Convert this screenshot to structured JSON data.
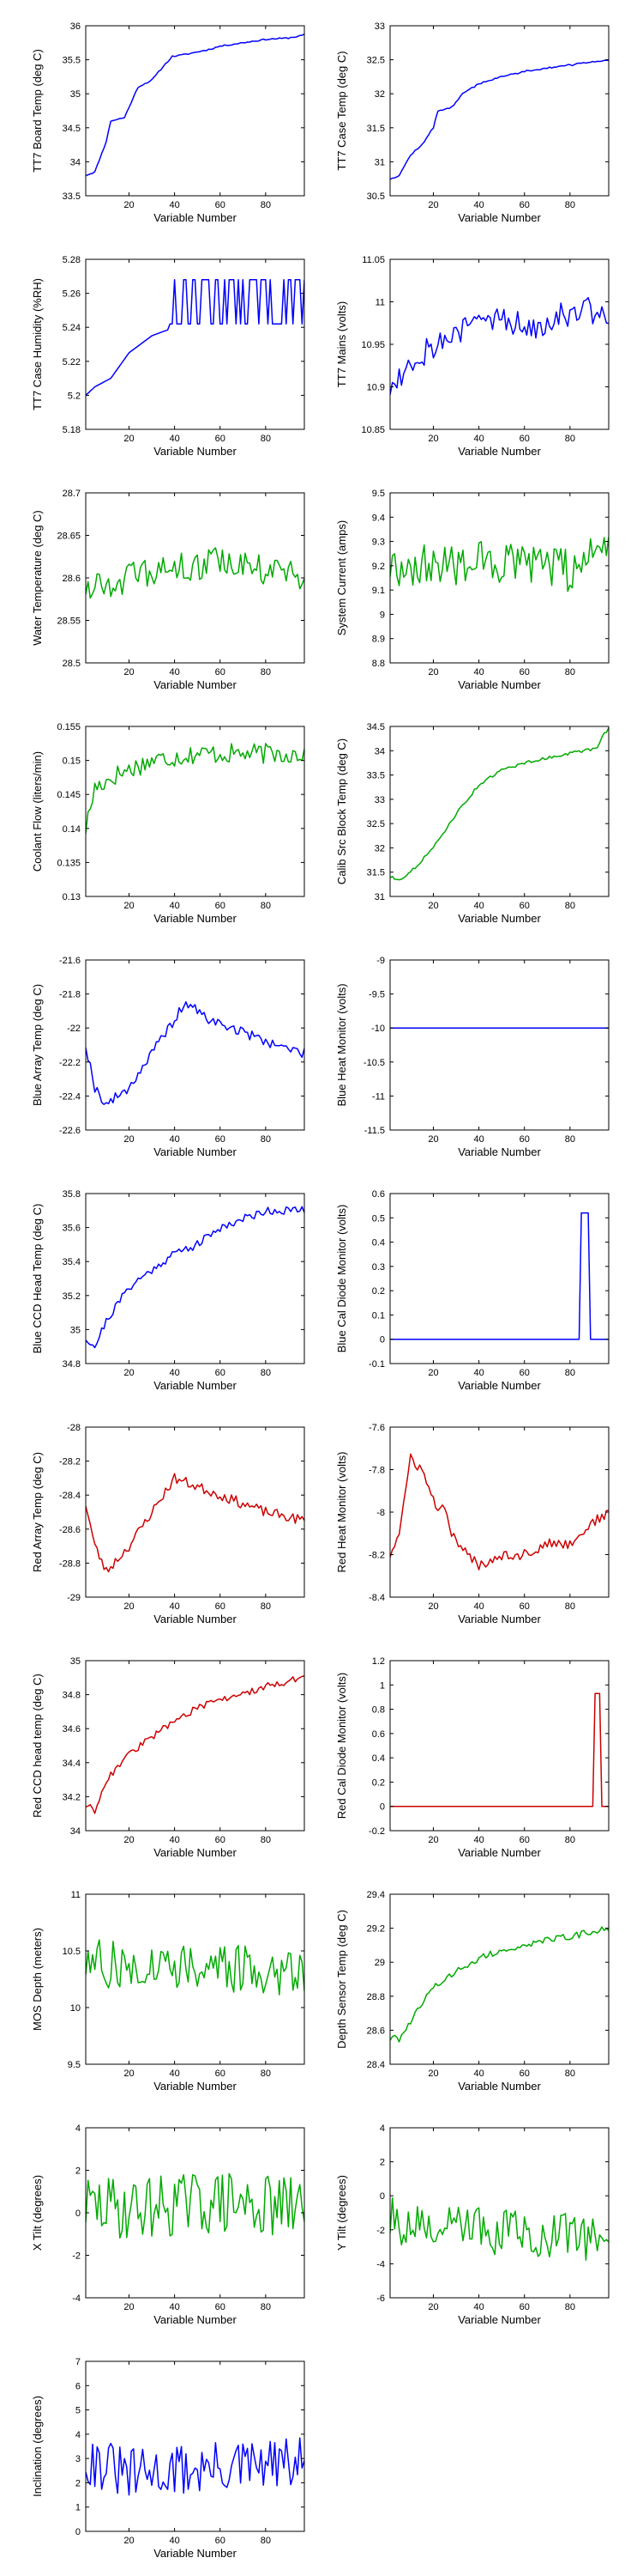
{
  "figure": {
    "xlabel": "Variable Number",
    "xlim": [
      1,
      97
    ],
    "xticks": [
      20,
      40,
      60,
      80
    ]
  },
  "chart_data": [
    {
      "type": "line",
      "color": "#0000ff",
      "xlabel": "Variable Number",
      "ylabel": "TT7 Board Temp (deg C)",
      "ylim": [
        33.5,
        36
      ],
      "yticks": [
        33.5,
        34,
        34.5,
        35,
        35.5,
        36
      ],
      "keyframes": [
        [
          1,
          33.8
        ],
        [
          5,
          33.85
        ],
        [
          10,
          34.3
        ],
        [
          12,
          34.6
        ],
        [
          18,
          34.65
        ],
        [
          24,
          35.1
        ],
        [
          30,
          35.2
        ],
        [
          35,
          35.4
        ],
        [
          39,
          35.55
        ],
        [
          45,
          35.58
        ],
        [
          55,
          35.65
        ],
        [
          60,
          35.7
        ],
        [
          70,
          35.75
        ],
        [
          80,
          35.8
        ],
        [
          90,
          35.82
        ],
        [
          95,
          35.85
        ],
        [
          97,
          35.87
        ]
      ],
      "noise": 0.01,
      "seed": 11
    },
    {
      "type": "line",
      "color": "#0000ff",
      "xlabel": "Variable Number",
      "ylabel": "TT7 Case Temp (deg C)",
      "ylim": [
        30.5,
        33
      ],
      "yticks": [
        30.5,
        31,
        31.5,
        32,
        32.5,
        33
      ],
      "keyframes": [
        [
          1,
          30.75
        ],
        [
          5,
          30.8
        ],
        [
          10,
          31.1
        ],
        [
          15,
          31.25
        ],
        [
          20,
          31.5
        ],
        [
          22,
          31.75
        ],
        [
          28,
          31.8
        ],
        [
          33,
          32
        ],
        [
          40,
          32.15
        ],
        [
          50,
          32.25
        ],
        [
          60,
          32.33
        ],
        [
          70,
          32.38
        ],
        [
          80,
          32.42
        ],
        [
          90,
          32.47
        ],
        [
          97,
          32.5
        ]
      ],
      "noise": 0.012,
      "seed": 12
    },
    {
      "type": "line",
      "color": "#0000ff",
      "xlabel": "Variable Number",
      "ylabel": "TT7 Case Humidity (%RH)",
      "ylim": [
        5.18,
        5.28
      ],
      "yticks": [
        5.18,
        5.2,
        5.22,
        5.24,
        5.26,
        5.28
      ],
      "keyframes": [
        [
          1,
          5.2
        ],
        [
          5,
          5.205
        ],
        [
          12,
          5.21
        ],
        [
          20,
          5.225
        ],
        [
          30,
          5.235
        ],
        [
          40,
          5.24
        ],
        [
          97,
          5.245
        ]
      ],
      "mode": "step",
      "levels": [
        5.242,
        5.268
      ],
      "stepStart": 38,
      "seed": 13
    },
    {
      "type": "line",
      "color": "#0000ff",
      "xlabel": "Variable Number",
      "ylabel": "TT7 Mains (volts)",
      "ylim": [
        10.85,
        11.05
      ],
      "yticks": [
        10.85,
        10.9,
        10.95,
        11,
        11.05
      ],
      "keyframes": [
        [
          1,
          10.9
        ],
        [
          10,
          10.93
        ],
        [
          20,
          10.95
        ],
        [
          30,
          10.96
        ],
        [
          40,
          10.98
        ],
        [
          50,
          10.98
        ],
        [
          60,
          10.97
        ],
        [
          70,
          10.98
        ],
        [
          80,
          10.99
        ],
        [
          90,
          10.99
        ],
        [
          97,
          10.98
        ]
      ],
      "noise": 0.018,
      "seed": 14
    },
    {
      "type": "line",
      "color": "#00aa00",
      "xlabel": "Variable Number",
      "ylabel": "Water Temperature (deg C)",
      "ylim": [
        28.5,
        28.7
      ],
      "yticks": [
        28.5,
        28.55,
        28.6,
        28.65,
        28.7
      ],
      "keyframes": [
        [
          1,
          28.59
        ],
        [
          20,
          28.6
        ],
        [
          40,
          28.61
        ],
        [
          60,
          28.62
        ],
        [
          80,
          28.61
        ],
        [
          97,
          28.6
        ]
      ],
      "noise": 0.018,
      "seed": 15
    },
    {
      "type": "line",
      "color": "#00aa00",
      "xlabel": "Variable Number",
      "ylabel": "System Current (amps)",
      "ylim": [
        8.8,
        9.5
      ],
      "yticks": [
        8.8,
        8.9,
        9,
        9.1,
        9.2,
        9.3,
        9.4,
        9.5
      ],
      "keyframes": [
        [
          1,
          9.2
        ],
        [
          20,
          9.2
        ],
        [
          40,
          9.22
        ],
        [
          60,
          9.2
        ],
        [
          80,
          9.18
        ],
        [
          90,
          9.25
        ],
        [
          97,
          9.3
        ]
      ],
      "noise": 0.09,
      "seed": 16
    },
    {
      "type": "line",
      "color": "#00aa00",
      "xlabel": "Variable Number",
      "ylabel": "Coolant Flow (liters/min)",
      "ylim": [
        0.13,
        0.155
      ],
      "yticks": [
        0.13,
        0.135,
        0.14,
        0.145,
        0.15,
        0.155
      ],
      "keyframes": [
        [
          1,
          0.14
        ],
        [
          5,
          0.146
        ],
        [
          15,
          0.148
        ],
        [
          30,
          0.15
        ],
        [
          50,
          0.151
        ],
        [
          70,
          0.151
        ],
        [
          97,
          0.151
        ]
      ],
      "noise": 0.0015,
      "seed": 17
    },
    {
      "type": "line",
      "color": "#00aa00",
      "xlabel": "Variable Number",
      "ylabel": "Calib Src Block Temp (deg C)",
      "ylim": [
        31,
        34.5
      ],
      "yticks": [
        31,
        31.5,
        32,
        32.5,
        33,
        33.5,
        34,
        34.5
      ],
      "keyframes": [
        [
          1,
          31.4
        ],
        [
          5,
          31.35
        ],
        [
          10,
          31.5
        ],
        [
          20,
          32
        ],
        [
          30,
          32.7
        ],
        [
          40,
          33.3
        ],
        [
          50,
          33.6
        ],
        [
          60,
          33.75
        ],
        [
          70,
          33.85
        ],
        [
          80,
          33.95
        ],
        [
          92,
          34.05
        ],
        [
          95,
          34.35
        ],
        [
          97,
          34.45
        ]
      ],
      "noise": 0.03,
      "seed": 18
    },
    {
      "type": "line",
      "color": "#0000ff",
      "xlabel": "Variable Number",
      "ylabel": "Blue Array Temp (deg C)",
      "ylim": [
        -22.6,
        -21.6
      ],
      "yticks": [
        -22.6,
        -22.4,
        -22.2,
        -22,
        -21.8,
        -21.6
      ],
      "keyframes": [
        [
          1,
          -22.1
        ],
        [
          5,
          -22.35
        ],
        [
          10,
          -22.45
        ],
        [
          20,
          -22.35
        ],
        [
          30,
          -22.15
        ],
        [
          40,
          -21.95
        ],
        [
          45,
          -21.85
        ],
        [
          55,
          -21.95
        ],
        [
          65,
          -22
        ],
        [
          75,
          -22.05
        ],
        [
          85,
          -22.1
        ],
        [
          97,
          -22.15
        ]
      ],
      "noise": 0.03,
      "seed": 19
    },
    {
      "type": "line",
      "color": "#0000ff",
      "xlabel": "Variable Number",
      "ylabel": "Blue Heat Monitor (volts)",
      "ylim": [
        -11.5,
        -9
      ],
      "yticks": [
        -11.5,
        -11,
        -10.5,
        -10,
        -9.5,
        -9
      ],
      "keyframes": [
        [
          1,
          -10
        ],
        [
          97,
          -10
        ]
      ],
      "noise": 0,
      "seed": 20
    },
    {
      "type": "line",
      "color": "#0000ff",
      "xlabel": "Variable Number",
      "ylabel": "Blue CCD Head Temp (deg C)",
      "ylim": [
        34.8,
        35.8
      ],
      "yticks": [
        34.8,
        35,
        35.2,
        35.4,
        35.6,
        35.8
      ],
      "keyframes": [
        [
          1,
          34.95
        ],
        [
          5,
          34.9
        ],
        [
          10,
          35.05
        ],
        [
          20,
          35.25
        ],
        [
          30,
          35.35
        ],
        [
          40,
          35.45
        ],
        [
          50,
          35.5
        ],
        [
          60,
          35.6
        ],
        [
          70,
          35.65
        ],
        [
          80,
          35.7
        ],
        [
          97,
          35.7
        ]
      ],
      "noise": 0.025,
      "seed": 21
    },
    {
      "type": "line",
      "color": "#0000ff",
      "xlabel": "Variable Number",
      "ylabel": "Blue Cal Diode Monitor (volts)",
      "ylim": [
        -0.1,
        0.6
      ],
      "yticks": [
        -0.1,
        0,
        0.1,
        0.2,
        0.3,
        0.4,
        0.5,
        0.6
      ],
      "keyframes": [
        [
          1,
          0
        ],
        [
          84,
          0
        ],
        [
          85,
          0.52
        ],
        [
          88,
          0.52
        ],
        [
          89,
          0
        ],
        [
          97,
          0
        ]
      ],
      "noise": 0,
      "seed": 22
    },
    {
      "type": "line",
      "color": "#cc0000",
      "xlabel": "Variable Number",
      "ylabel": "Red Array Temp (deg C)",
      "ylim": [
        -29,
        -28
      ],
      "yticks": [
        -29,
        -28.8,
        -28.6,
        -28.4,
        -28.2,
        -28
      ],
      "keyframes": [
        [
          1,
          -28.45
        ],
        [
          5,
          -28.7
        ],
        [
          10,
          -28.85
        ],
        [
          20,
          -28.7
        ],
        [
          30,
          -28.5
        ],
        [
          40,
          -28.3
        ],
        [
          50,
          -28.35
        ],
        [
          60,
          -28.4
        ],
        [
          70,
          -28.45
        ],
        [
          80,
          -28.5
        ],
        [
          97,
          -28.55
        ]
      ],
      "noise": 0.03,
      "seed": 23
    },
    {
      "type": "line",
      "color": "#cc0000",
      "xlabel": "Variable Number",
      "ylabel": "Red Heat Monitor (volts)",
      "ylim": [
        -8.4,
        -7.6
      ],
      "yticks": [
        -8.4,
        -8.2,
        -8,
        -7.8,
        -7.6
      ],
      "keyframes": [
        [
          1,
          -8.2
        ],
        [
          5,
          -8.1
        ],
        [
          10,
          -7.75
        ],
        [
          15,
          -7.8
        ],
        [
          20,
          -7.95
        ],
        [
          25,
          -8
        ],
        [
          30,
          -8.15
        ],
        [
          40,
          -8.25
        ],
        [
          50,
          -8.2
        ],
        [
          60,
          -8.2
        ],
        [
          70,
          -8.15
        ],
        [
          80,
          -8.15
        ],
        [
          90,
          -8.05
        ],
        [
          97,
          -8.0
        ]
      ],
      "noise": 0.025,
      "seed": 24
    },
    {
      "type": "line",
      "color": "#cc0000",
      "xlabel": "Variable Number",
      "ylabel": "Red CCD head temp (deg C)",
      "ylim": [
        34,
        35
      ],
      "yticks": [
        34,
        34.2,
        34.4,
        34.6,
        34.8,
        35
      ],
      "keyframes": [
        [
          1,
          34.15
        ],
        [
          5,
          34.12
        ],
        [
          10,
          34.3
        ],
        [
          20,
          34.45
        ],
        [
          30,
          34.55
        ],
        [
          40,
          34.65
        ],
        [
          50,
          34.72
        ],
        [
          60,
          34.77
        ],
        [
          70,
          34.8
        ],
        [
          80,
          34.85
        ],
        [
          97,
          34.9
        ]
      ],
      "noise": 0.02,
      "seed": 25
    },
    {
      "type": "line",
      "color": "#cc0000",
      "xlabel": "Variable Number",
      "ylabel": "Red Cal Diode Monitor (volts)",
      "ylim": [
        -0.2,
        1.2
      ],
      "yticks": [
        -0.2,
        0,
        0.2,
        0.4,
        0.6,
        0.8,
        1,
        1.2
      ],
      "keyframes": [
        [
          1,
          0
        ],
        [
          90,
          0
        ],
        [
          91,
          0.93
        ],
        [
          93,
          0.93
        ],
        [
          94,
          0
        ],
        [
          97,
          0
        ]
      ],
      "noise": 0,
      "seed": 26
    },
    {
      "type": "line",
      "color": "#00aa00",
      "xlabel": "Variable Number",
      "ylabel": "MOS Depth  (meters)",
      "ylim": [
        9.5,
        11
      ],
      "yticks": [
        9.5,
        10,
        10.5,
        11
      ],
      "keyframes": [
        [
          1,
          10.4
        ],
        [
          20,
          10.35
        ],
        [
          40,
          10.4
        ],
        [
          60,
          10.35
        ],
        [
          80,
          10.3
        ],
        [
          97,
          10.35
        ]
      ],
      "noise": 0.22,
      "seed": 27
    },
    {
      "type": "line",
      "color": "#00aa00",
      "xlabel": "Variable Number",
      "ylabel": "Depth Sensor Temp (deg C)",
      "ylim": [
        28.4,
        29.4
      ],
      "yticks": [
        28.4,
        28.6,
        28.8,
        29,
        29.2,
        29.4
      ],
      "keyframes": [
        [
          1,
          28.55
        ],
        [
          5,
          28.55
        ],
        [
          10,
          28.65
        ],
        [
          20,
          28.85
        ],
        [
          30,
          28.95
        ],
        [
          40,
          29.02
        ],
        [
          50,
          29.07
        ],
        [
          60,
          29.1
        ],
        [
          70,
          29.13
        ],
        [
          80,
          29.15
        ],
        [
          97,
          29.2
        ]
      ],
      "noise": 0.02,
      "seed": 28
    },
    {
      "type": "line",
      "color": "#00aa00",
      "xlabel": "Variable Number",
      "ylabel": "X Tilt  (degrees)",
      "ylim": [
        -4,
        4
      ],
      "yticks": [
        -4,
        -2,
        0,
        2,
        4
      ],
      "keyframes": [
        [
          1,
          0.3
        ],
        [
          20,
          0.2
        ],
        [
          40,
          0.4
        ],
        [
          60,
          0.5
        ],
        [
          80,
          0.3
        ],
        [
          97,
          0.2
        ]
      ],
      "noise": 1.5,
      "seed": 29
    },
    {
      "type": "line",
      "color": "#00aa00",
      "xlabel": "Variable Number",
      "ylabel": "Y Tilt  (degrees)",
      "ylim": [
        -6,
        4
      ],
      "yticks": [
        -6,
        -4,
        -2,
        0,
        2,
        4
      ],
      "keyframes": [
        [
          1,
          -1.5
        ],
        [
          20,
          -2
        ],
        [
          40,
          -2
        ],
        [
          60,
          -2.2
        ],
        [
          80,
          -2.3
        ],
        [
          97,
          -2.5
        ]
      ],
      "noise": 1.4,
      "seed": 30
    },
    {
      "type": "line",
      "color": "#0000ff",
      "xlabel": "Variable Number",
      "ylabel": "Inclination  (degrees)",
      "ylim": [
        0,
        7
      ],
      "yticks": [
        0,
        1,
        2,
        3,
        4,
        5,
        6,
        7
      ],
      "keyframes": [
        [
          1,
          3
        ],
        [
          20,
          2.3
        ],
        [
          40,
          2.5
        ],
        [
          60,
          2.6
        ],
        [
          80,
          2.7
        ],
        [
          97,
          2.8
        ]
      ],
      "noise": 1.1,
      "seed": 31
    }
  ]
}
